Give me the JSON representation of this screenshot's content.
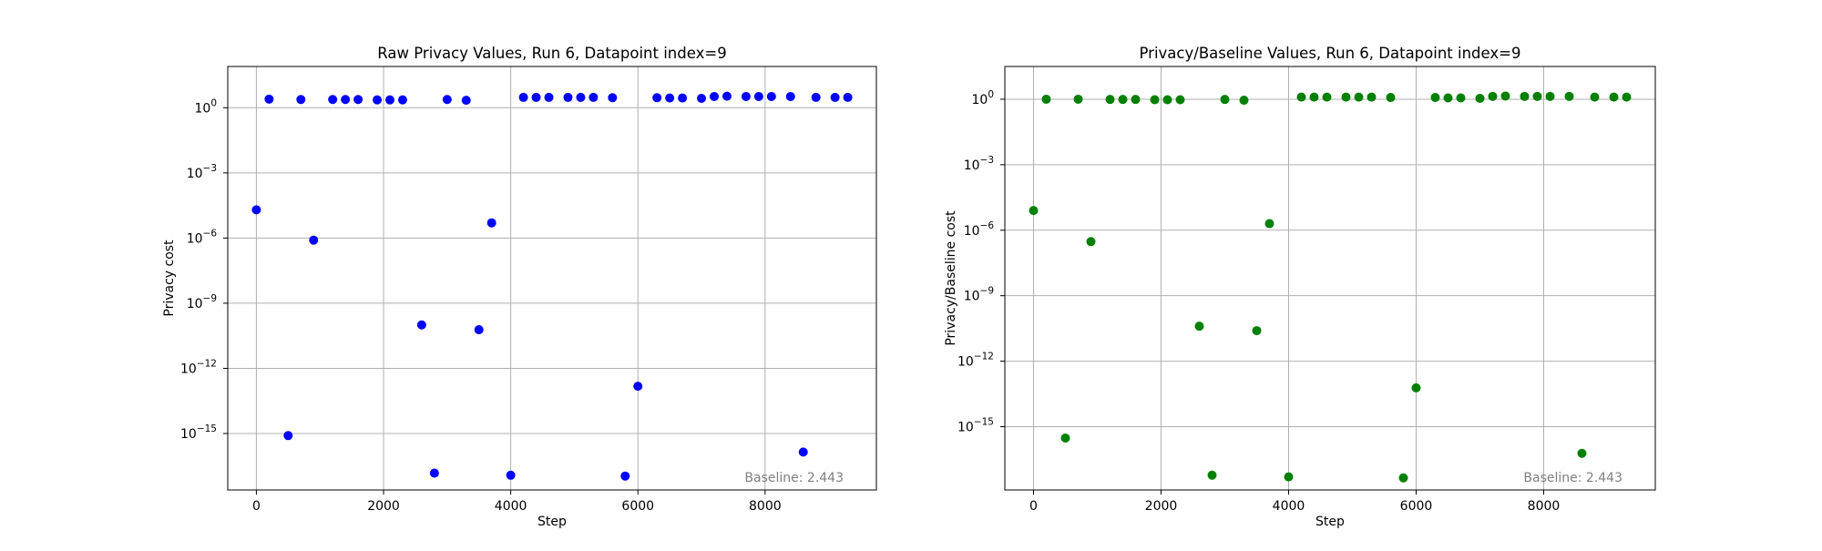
{
  "chart_data": [
    {
      "type": "scatter",
      "title": "Raw Privacy Values, Run 6, Datapoint index=9",
      "xlabel": "Step",
      "ylabel": "Privacy cost",
      "xscale": "linear",
      "yscale": "log",
      "xlim": [
        -450,
        9750
      ],
      "ylim_exp": [
        -17.6,
        1.9
      ],
      "xticks": [
        0,
        2000,
        4000,
        6000,
        8000
      ],
      "xtick_labels": [
        "0",
        "2000",
        "4000",
        "6000",
        "8000"
      ],
      "yticks_exp": [
        0,
        -3,
        -6,
        -9,
        -12,
        -15
      ],
      "ytick_labels": [
        "10^0",
        "10^-3",
        "10^-6",
        "10^-9",
        "10^-12",
        "10^-15"
      ],
      "grid": true,
      "marker_color": "#0000ff",
      "annotation": "Baseline: 2.443",
      "annotation_position": "bottom-right",
      "x": [
        0,
        200,
        500,
        700,
        900,
        1200,
        1400,
        1600,
        1900,
        2100,
        2300,
        2600,
        2800,
        3000,
        3300,
        3500,
        3700,
        4000,
        4200,
        4400,
        4600,
        4900,
        5100,
        5300,
        5600,
        5800,
        6000,
        6300,
        6500,
        6700,
        7000,
        7200,
        7400,
        7700,
        7900,
        8100,
        8400,
        8600,
        8800,
        9100,
        9300
      ],
      "y": [
        2e-05,
        2.5,
        8e-16,
        2.4,
        8e-07,
        2.4,
        2.4,
        2.4,
        2.3,
        2.3,
        2.3,
        1e-10,
        1.5e-17,
        2.4,
        2.2,
        6e-11,
        5e-06,
        1.2e-17,
        3.0,
        3.0,
        3.0,
        3.0,
        3.0,
        3.0,
        2.9,
        1.1e-17,
        1.5e-13,
        2.9,
        2.8,
        2.8,
        2.7,
        3.3,
        3.4,
        3.3,
        3.3,
        3.3,
        3.3,
        1.4e-16,
        3.0,
        3.0,
        3.0
      ]
    },
    {
      "type": "scatter",
      "title": "Privacy/Baseline Values, Run 6, Datapoint index=9",
      "xlabel": "Step",
      "ylabel": "Privacy/Baseline cost",
      "xscale": "linear",
      "yscale": "log",
      "xlim": [
        -450,
        9750
      ],
      "ylim_exp": [
        -17.9,
        1.5
      ],
      "xticks": [
        0,
        2000,
        4000,
        6000,
        8000
      ],
      "xtick_labels": [
        "0",
        "2000",
        "4000",
        "6000",
        "8000"
      ],
      "yticks_exp": [
        0,
        -3,
        -6,
        -9,
        -12,
        -15
      ],
      "ytick_labels": [
        "10^0",
        "10^-3",
        "10^-6",
        "10^-9",
        "10^-12",
        "10^-15"
      ],
      "grid": true,
      "marker_color": "#008000",
      "annotation": "Baseline: 2.443",
      "annotation_position": "bottom-right",
      "x": [
        0,
        200,
        500,
        700,
        900,
        1200,
        1400,
        1600,
        1900,
        2100,
        2300,
        2600,
        2800,
        3000,
        3300,
        3500,
        3700,
        4000,
        4200,
        4400,
        4600,
        4900,
        5100,
        5300,
        5600,
        5800,
        6000,
        6300,
        6500,
        6700,
        7000,
        7200,
        7400,
        7700,
        7900,
        8100,
        8400,
        8600,
        8800,
        9100,
        9300
      ],
      "y": [
        8e-06,
        1.0,
        3e-16,
        1.0,
        3e-07,
        0.98,
        0.98,
        0.98,
        0.95,
        0.95,
        0.95,
        4e-11,
        6e-18,
        0.98,
        0.9,
        2.5e-11,
        2e-06,
        5e-18,
        1.25,
        1.25,
        1.25,
        1.25,
        1.25,
        1.25,
        1.2,
        4.5e-18,
        6e-14,
        1.2,
        1.15,
        1.15,
        1.1,
        1.35,
        1.4,
        1.35,
        1.35,
        1.35,
        1.35,
        6e-17,
        1.25,
        1.25,
        1.25
      ]
    }
  ]
}
